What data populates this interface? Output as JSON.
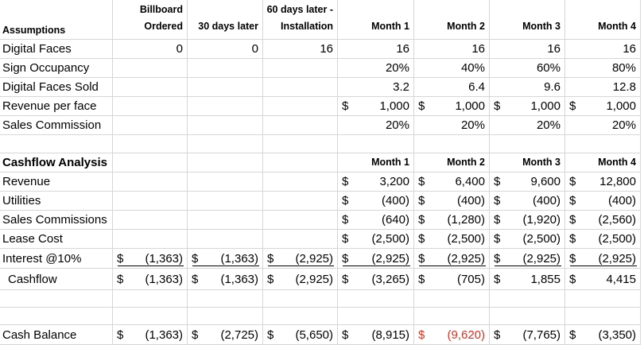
{
  "table": {
    "rows": [
      {
        "label": "Assumptions",
        "bold": true,
        "cells": [
          [
            "Billboard",
            "Ordered"
          ],
          [
            "30 days later"
          ],
          [
            "60 days later -",
            "Installation"
          ],
          [
            "Month 1"
          ],
          [
            "Month 2"
          ],
          [
            "Month 3"
          ],
          [
            "Month 4"
          ]
        ]
      },
      {
        "label": "Digital Faces",
        "cells": [
          "0",
          "0",
          "16",
          "16",
          "16",
          "16",
          "16"
        ]
      },
      {
        "label": "Sign Occupancy",
        "cells": [
          null,
          null,
          null,
          "20%",
          "40%",
          "60%",
          "80%"
        ]
      },
      {
        "label": "Digital Faces Sold",
        "cells": [
          null,
          null,
          null,
          "3.2",
          "6.4",
          "9.6",
          "12.8"
        ]
      },
      {
        "label": "Revenue per face",
        "cells": [
          null,
          null,
          null,
          {
            "sign": "$",
            "amount": "1,000"
          },
          {
            "sign": "$",
            "amount": "1,000"
          },
          {
            "sign": "$",
            "amount": "1,000"
          },
          {
            "sign": "$",
            "amount": "1,000"
          }
        ]
      },
      {
        "label": "Sales Commission",
        "cells": [
          null,
          null,
          null,
          "20%",
          "20%",
          "20%",
          "20%"
        ]
      },
      null,
      {
        "label": "Cashflow Analysis",
        "bold": true,
        "cells": [
          null,
          null,
          null,
          [
            "Month 1"
          ],
          [
            "Month 2"
          ],
          [
            "Month 3"
          ],
          [
            "Month 4"
          ]
        ]
      },
      {
        "label": "Revenue",
        "cells": [
          null,
          null,
          null,
          {
            "sign": "$",
            "amount": "3,200"
          },
          {
            "sign": "$",
            "amount": "6,400"
          },
          {
            "sign": "$",
            "amount": "9,600"
          },
          {
            "sign": "$",
            "amount": "12,800"
          }
        ]
      },
      {
        "label": "Utilities",
        "cells": [
          null,
          null,
          null,
          {
            "sign": "$",
            "amount": "(400)"
          },
          {
            "sign": "$",
            "amount": "(400)"
          },
          {
            "sign": "$",
            "amount": "(400)"
          },
          {
            "sign": "$",
            "amount": "(400)"
          }
        ]
      },
      {
        "label": "Sales Commissions",
        "cells": [
          null,
          null,
          null,
          {
            "sign": "$",
            "amount": "(640)"
          },
          {
            "sign": "$",
            "amount": "(1,280)"
          },
          {
            "sign": "$",
            "amount": "(1,920)"
          },
          {
            "sign": "$",
            "amount": "(2,560)"
          }
        ]
      },
      {
        "label": "Lease Cost",
        "cells": [
          null,
          null,
          null,
          {
            "sign": "$",
            "amount": "(2,500)"
          },
          {
            "sign": "$",
            "amount": "(2,500)"
          },
          {
            "sign": "$",
            "amount": "(2,500)"
          },
          {
            "sign": "$",
            "amount": "(2,500)"
          }
        ]
      },
      {
        "label": "Interest @10%",
        "underline": true,
        "cells": [
          {
            "sign": "$",
            "amount": "(1,363)"
          },
          {
            "sign": "$",
            "amount": "(1,363)"
          },
          {
            "sign": "$",
            "amount": "(2,925)"
          },
          {
            "sign": "$",
            "amount": "(2,925)"
          },
          {
            "sign": "$",
            "amount": "(2,925)"
          },
          {
            "sign": "$",
            "amount": "(2,925)"
          },
          {
            "sign": "$",
            "amount": "(2,925)"
          }
        ]
      },
      {
        "label": "Cashflow",
        "indent": true,
        "cells": [
          {
            "sign": "$",
            "amount": "(1,363)"
          },
          {
            "sign": "$",
            "amount": "(1,363)"
          },
          {
            "sign": "$",
            "amount": "(2,925)"
          },
          {
            "sign": "$",
            "amount": "(3,265)"
          },
          {
            "sign": "$",
            "amount": "(705)"
          },
          {
            "sign": "$",
            "amount": "1,855"
          },
          {
            "sign": "$",
            "amount": "4,415"
          }
        ]
      },
      null,
      null,
      {
        "label": "Cash Balance",
        "cells": [
          {
            "sign": "$",
            "amount": "(1,363)"
          },
          {
            "sign": "$",
            "amount": "(2,725)"
          },
          {
            "sign": "$",
            "amount": "(5,650)"
          },
          {
            "sign": "$",
            "amount": "(8,915)"
          },
          {
            "sign": "$",
            "amount": "(9,620)",
            "color": "#e0301e"
          },
          {
            "sign": "$",
            "amount": "(7,765)"
          },
          {
            "sign": "$",
            "amount": "(3,350)"
          }
        ]
      }
    ]
  }
}
